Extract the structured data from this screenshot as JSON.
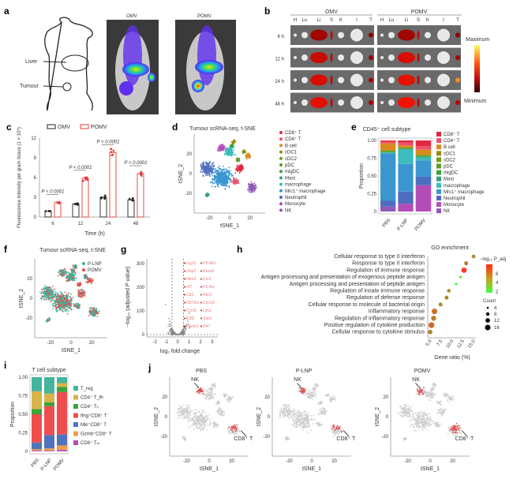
{
  "panels": {
    "a": {
      "label": "a",
      "liver": "Liver",
      "tumour": "Tumour",
      "img1_title": "OMV",
      "img2_title": "POMV"
    },
    "b": {
      "label": "b",
      "group1": "OMV",
      "group2": "POMV",
      "organs": [
        "H",
        "Lu",
        "Li",
        "S",
        "K",
        "I",
        "T"
      ],
      "times": [
        "6 h",
        "12 h",
        "24 h",
        "48 h"
      ],
      "scale_max": "Maximum",
      "scale_min": "Minimum"
    },
    "c": {
      "label": "c"
    },
    "d": {
      "label": "d"
    },
    "e": {
      "label": "e"
    },
    "f": {
      "label": "f",
      "title": "Tumour scRNA-seq, t-SNE",
      "legend": [
        "P-LNP",
        "POMV"
      ],
      "xlabel": "tSNE_1",
      "ylabel": "tSNE_2",
      "colors": [
        "#3bb39a",
        "#f04848"
      ]
    },
    "g": {
      "label": "g",
      "xlabel": "log₂ fold change",
      "ylabel": "−log₁₀ (adjusted P value)",
      "xticks": [
        "-2",
        "-1",
        "0",
        "1",
        "2",
        "3"
      ],
      "yticks": [
        "0",
        "100",
        "200",
        "300"
      ],
      "genes": [
        "Isg15",
        "Gbp2",
        "Ifitm3",
        "Irf7",
        "Cd3",
        "Ifi27l2a",
        "Cxcl9",
        "Cd5l",
        "Psme2",
        "H2-Ab1",
        "Rsad2",
        "Ccr2",
        "H2-Aa",
        "Nlrc5",
        "Cxcl10",
        "Ly6a",
        "Stat1",
        "Ifi47"
      ]
    },
    "h": {
      "label": "h",
      "colorbar_title": "−log₁₀ P_adj",
      "colorbar_ticks": [
        "2",
        "4",
        "6"
      ],
      "count_title": "Count",
      "count_values": [
        "4",
        "8",
        "12",
        "16"
      ]
    },
    "i": {
      "label": "i"
    },
    "j": {
      "label": "j",
      "panels": [
        "PBS",
        "P-LNP",
        "POMV"
      ],
      "nk": "NK",
      "cd8": "CD8⁺ T",
      "xlabel": "tSNE_1",
      "ylabel": "tSNE_2",
      "xticks": [
        "-20",
        "0",
        "20"
      ],
      "yticks": [
        "20",
        "0",
        "-20"
      ]
    }
  },
  "chart_data": [
    {
      "id": "c",
      "type": "bar",
      "title": "",
      "legend_position": "top",
      "categories": [
        "6",
        "12",
        "24",
        "48"
      ],
      "series": [
        {
          "name": "OMV",
          "values": [
            0.9,
            2.0,
            3.0,
            2.6
          ],
          "color": "#222222"
        },
        {
          "name": "POMV",
          "values": [
            2.2,
            5.9,
            9.8,
            6.6
          ],
          "color": "#e83b3b"
        }
      ],
      "annotations": [
        "P < 0.0001",
        "P < 0.0001",
        "P < 0.0001",
        "P < 0.0001"
      ],
      "xlabel": "Time (h)",
      "ylabel": "Fluorescence intensity per gram tissue (1 × 10⁹)",
      "ylim": [
        0,
        12
      ],
      "yticks": [
        "0",
        "3",
        "6",
        "9",
        "12"
      ]
    },
    {
      "id": "d",
      "type": "scatter",
      "title": "Tumour scRNA-seq, t-SNE",
      "xlabel": "tSNE_1",
      "ylabel": "tSNE_2",
      "xticks": [
        "-20",
        "0",
        "20"
      ],
      "yticks": [
        "20",
        "0",
        "-20"
      ],
      "legend": [
        "CD8⁺ T",
        "CD4⁺ T",
        "B cell",
        "cDC1",
        "cDC2",
        "pDC",
        "migDC",
        "Mast",
        "macrophage",
        "Mrc1⁺ macrophage",
        "Neutrophil",
        "Monocyte",
        "NK"
      ],
      "colors": [
        "#e0283f",
        "#f0506a",
        "#d98a1e",
        "#9a8a12",
        "#7a9a1e",
        "#5a9e28",
        "#3aa534",
        "#3a9e7e",
        "#3cbcbc",
        "#3b96cf",
        "#4d6dbf",
        "#b44cb8",
        "#9058b8"
      ]
    },
    {
      "id": "e",
      "type": "bar",
      "stacked": true,
      "title": "CD45⁺ cell subtype",
      "ylabel": "Proportion",
      "categories": [
        "PBS",
        "P-LNP",
        "POMV"
      ],
      "ylim": [
        0,
        1
      ],
      "yticks": [
        "0",
        "0.25",
        "0.50",
        "0.75",
        "1.00"
      ],
      "series": [
        {
          "name": "NK",
          "values": [
            0.07,
            0.0,
            0.0
          ],
          "color": "#9058b8"
        },
        {
          "name": "Monocyte",
          "values": [
            0.0,
            0.11,
            0.37
          ],
          "color": "#b44cb8"
        },
        {
          "name": "Neutrophil",
          "values": [
            0.08,
            0.17,
            0.12
          ],
          "color": "#4d6dbf"
        },
        {
          "name": "Mrc1⁺ macrophage",
          "values": [
            0.67,
            0.39,
            0.23
          ],
          "color": "#3b96cf"
        },
        {
          "name": "macrophage",
          "values": [
            0.01,
            0.2,
            0.04
          ],
          "color": "#3cbcbc"
        },
        {
          "name": "Mast",
          "values": [
            0.0,
            0.01,
            0.01
          ],
          "color": "#3a9e7e"
        },
        {
          "name": "migDC",
          "values": [
            0.01,
            0.01,
            0.01
          ],
          "color": "#3aa534"
        },
        {
          "name": "pDC",
          "values": [
            0.01,
            0.01,
            0.01
          ],
          "color": "#5a9e28"
        },
        {
          "name": "cDC2",
          "values": [
            0.01,
            0.0,
            0.01
          ],
          "color": "#7a9a1e"
        },
        {
          "name": "cDC1",
          "values": [
            0.0,
            0.0,
            0.0
          ],
          "color": "#9a8a12"
        },
        {
          "name": "B cell",
          "values": [
            0.1,
            0.03,
            0.07
          ],
          "color": "#d98a1e"
        },
        {
          "name": "CD4⁺ T",
          "values": [
            0.02,
            0.04,
            0.05
          ],
          "color": "#f0506a"
        },
        {
          "name": "CD8⁺ T",
          "values": [
            0.02,
            0.03,
            0.08
          ],
          "color": "#e0283f"
        }
      ],
      "legend": [
        "CD8⁺ T",
        "CD4⁺ T",
        "B cell",
        "cDC1",
        "cDC2",
        "pDC",
        "migDC",
        "Mast",
        "macrophage",
        "Mrc1⁺ macrophage",
        "Neutrophil",
        "Monocyte",
        "NK"
      ]
    },
    {
      "id": "h",
      "type": "scatter",
      "title": "GO enrichment",
      "xlabel": "Gene ratio (%)",
      "xlim": [
        5,
        15
      ],
      "xticks": [
        "5.0",
        "7.5",
        "10.0",
        "12.5",
        "15.0"
      ],
      "terms": [
        "Cellular response to type II interferon",
        "Response to type II interferon",
        "Regulation of immune response",
        "Antigen processing and presentation of exogenous peptide antigen",
        "Antigen processing and presentation of peptide antigen",
        "Regulation of innate immune response",
        "Regulation of defense response",
        "Cellular response to molecule of bacterial origin",
        "Inflammatory response",
        "Regulation of inflammatory response",
        "Positive regulation of cytokine production",
        "Cellular response to cytokine stimulus"
      ],
      "gene_ratio": [
        15.0,
        13.3,
        12.8,
        12.0,
        11.0,
        9.3,
        8.8,
        7.4,
        6.0,
        5.8,
        5.3,
        5.0
      ],
      "neg_log10_padj": [
        5.0,
        5.2,
        7.0,
        2.2,
        2.0,
        4.8,
        5.0,
        4.8,
        5.6,
        5.2,
        5.8,
        5.0
      ],
      "count": [
        8,
        9,
        14,
        4,
        4,
        8,
        9,
        9,
        15,
        13,
        16,
        11
      ]
    },
    {
      "id": "i",
      "type": "bar",
      "stacked": true,
      "title": "T cell subtype",
      "ylabel": "Proportion",
      "categories": [
        "PBS",
        "P-LNP",
        "POMV"
      ],
      "ylim": [
        0,
        1
      ],
      "yticks": [
        "0",
        "0.25",
        "0.50",
        "0.75",
        "1.00"
      ],
      "series": [
        {
          "name": "CD8⁺ Tₘ",
          "values": [
            0.01,
            0.01,
            0.02
          ],
          "color": "#b44cb8"
        },
        {
          "name": "Gzmb⁺CD8⁺ T",
          "values": [
            0.02,
            0.03,
            0.06
          ],
          "color": "#f39c4b"
        },
        {
          "name": "Mki⁺CD8⁺ T",
          "values": [
            0.09,
            0.18,
            0.15
          ],
          "color": "#4f74bd"
        },
        {
          "name": "Ifng⁺CD8⁺ T",
          "values": [
            0.38,
            0.39,
            0.57
          ],
          "color": "#f04e4e"
        },
        {
          "name": "CD4⁺ Tₕ",
          "values": [
            0.07,
            0.05,
            0.07
          ],
          "color": "#3ba33a"
        },
        {
          "name": "CD4⁺ T_fh",
          "values": [
            0.24,
            0.12,
            0.05
          ],
          "color": "#d8b44a"
        },
        {
          "name": "T_reg",
          "values": [
            0.19,
            0.22,
            0.08
          ],
          "color": "#45b39d"
        }
      ],
      "legend": [
        "T_reg",
        "CD4⁺ T_fh",
        "CD4⁺ Tₕ",
        "Ifng⁺CD8⁺ T",
        "Mki⁺CD8⁺ T",
        "Gzmb⁺CD8⁺ T",
        "CD8⁺ Tₘ"
      ]
    }
  ]
}
